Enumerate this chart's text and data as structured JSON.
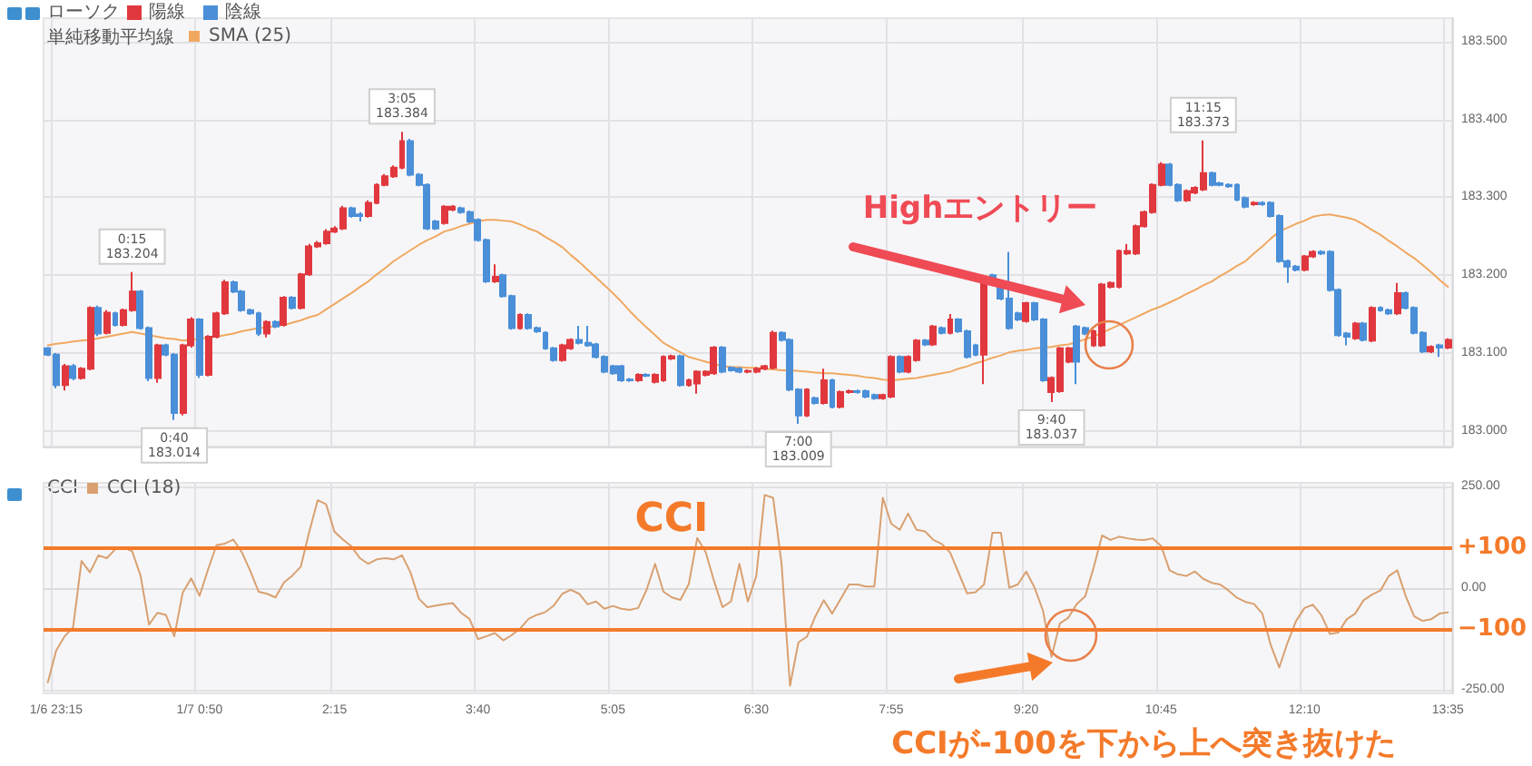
{
  "chart_data": [
    {
      "type": "candlestick",
      "legend_title": "ローソク",
      "legend": "top left",
      "grid": true,
      "tick_labels": "y",
      "categories": [
        null,
        null,
        null,
        null,
        null,
        null,
        null,
        null,
        null,
        null,
        null,
        null,
        null,
        null,
        null,
        null,
        null,
        null,
        null,
        null,
        null,
        null,
        null,
        null,
        null,
        null,
        null,
        null,
        null,
        null,
        null,
        null,
        null,
        null,
        null,
        null,
        null,
        null,
        null,
        null,
        null,
        null,
        null,
        null,
        null,
        null,
        null,
        null,
        null,
        null,
        null,
        null,
        null,
        null,
        null,
        null,
        null,
        null,
        null,
        null,
        null,
        null,
        null,
        null,
        null,
        null,
        null,
        null,
        null,
        null,
        null,
        null,
        null,
        null,
        null,
        null,
        null,
        null,
        null,
        null,
        null,
        null,
        null,
        null,
        null,
        null,
        null,
        null,
        null,
        null,
        null,
        null,
        null,
        null,
        null,
        null,
        null,
        null,
        null,
        null,
        null,
        null,
        null,
        null,
        null,
        null,
        null,
        null,
        null,
        null,
        null,
        null,
        null,
        null,
        null,
        null,
        null,
        null,
        null,
        null,
        null,
        null,
        null,
        null,
        null,
        null,
        null,
        null,
        null,
        null,
        null,
        null,
        null,
        null,
        null,
        null,
        null,
        null,
        null,
        null,
        null,
        null,
        null,
        null,
        null,
        null,
        null,
        null,
        null,
        null,
        null,
        null,
        null,
        null,
        null,
        null,
        null,
        null,
        null,
        null,
        null,
        null,
        null,
        null,
        null,
        null,
        null
      ],
      "ylim": [
        182.98,
        183.53
      ],
      "yticks": [
        {
          "value": 183.0,
          "label": "183.000"
        },
        {
          "value": 183.1,
          "label": "183.100"
        },
        {
          "value": 183.2,
          "label": "183.200"
        },
        {
          "value": 183.3,
          "label": "183.300"
        },
        {
          "value": 183.4,
          "label": "183.400"
        },
        {
          "value": 183.5,
          "label": "183.500"
        }
      ],
      "series": [
        {
          "name": "陽線",
          "color": "#e0383e",
          "ohlc": [
            null,
            null,
            [
              183.059,
              183.086,
              183.052,
              183.083
            ],
            null,
            [
              183.068,
              183.082,
              183.066,
              183.08
            ],
            [
              183.08,
              183.16,
              183.078,
              183.158
            ],
            null,
            [
              183.126,
              183.155,
              183.124,
              183.152
            ],
            null,
            [
              183.136,
              183.157,
              183.134,
              183.155
            ],
            [
              183.155,
              183.204,
              183.153,
              183.179
            ],
            null,
            null,
            [
              183.068,
              183.112,
              183.062,
              183.11
            ],
            null,
            null,
            [
              183.023,
              183.112,
              183.02,
              183.11
            ],
            [
              183.11,
              183.146,
              183.107,
              183.143
            ],
            null,
            [
              183.072,
              183.123,
              183.07,
              183.121
            ],
            [
              183.121,
              183.153,
              183.119,
              183.151
            ],
            [
              183.151,
              183.194,
              183.149,
              183.191
            ],
            null,
            null,
            null,
            null,
            [
              183.125,
              183.142,
              183.12,
              183.14
            ],
            null,
            [
              183.136,
              183.173,
              183.134,
              183.171
            ],
            null,
            [
              183.158,
              183.203,
              183.156,
              183.201
            ],
            [
              183.201,
              183.24,
              183.199,
              183.237
            ],
            [
              183.237,
              183.244,
              183.235,
              183.241
            ],
            [
              183.241,
              183.259,
              183.239,
              183.256
            ],
            [
              183.256,
              183.263,
              183.254,
              183.26
            ],
            [
              183.26,
              183.289,
              183.258,
              183.286
            ],
            null,
            null,
            [
              183.276,
              183.296,
              183.274,
              183.293
            ],
            [
              183.293,
              183.318,
              183.291,
              183.316
            ],
            [
              183.316,
              183.33,
              183.314,
              183.327
            ],
            [
              183.327,
              183.341,
              183.325,
              183.338
            ],
            [
              183.338,
              183.384,
              183.336,
              183.372
            ],
            null,
            null,
            null,
            null,
            [
              183.267,
              183.29,
              183.265,
              183.288
            ],
            [
              183.284,
              183.29,
              183.282,
              183.288
            ],
            null,
            null,
            null,
            null,
            [
              183.192,
              183.214,
              183.19,
              183.198
            ],
            null,
            null,
            [
              183.132,
              183.151,
              183.13,
              183.149
            ],
            null,
            null,
            null,
            null,
            [
              183.091,
              183.112,
              183.089,
              183.11
            ],
            [
              183.106,
              183.119,
              183.104,
              183.117
            ],
            null,
            null,
            null,
            null,
            null,
            null,
            null,
            [
              183.065,
              183.074,
              183.063,
              183.072
            ],
            null,
            [
              183.063,
              183.074,
              183.061,
              183.072
            ],
            [
              183.065,
              183.097,
              183.063,
              183.095
            ],
            [
              183.093,
              183.098,
              183.091,
              183.096
            ],
            null,
            [
              183.059,
              183.067,
              183.057,
              183.065
            ],
            [
              183.061,
              183.078,
              183.048,
              183.076
            ],
            [
              183.072,
              183.078,
              183.07,
              183.076
            ],
            [
              183.074,
              183.109,
              183.072,
              183.107
            ],
            null,
            null,
            null,
            [
              183.076,
              183.079,
              183.074,
              183.077
            ],
            [
              183.076,
              183.082,
              183.074,
              183.08
            ],
            [
              183.08,
              183.085,
              183.078,
              183.083
            ],
            [
              183.081,
              183.129,
              183.079,
              183.126
            ],
            null,
            null,
            null,
            [
              183.02,
              183.055,
              183.018,
              183.053
            ],
            null,
            [
              183.036,
              183.08,
              183.034,
              183.065
            ],
            null,
            [
              183.031,
              183.052,
              183.029,
              183.05
            ],
            [
              183.05,
              183.053,
              183.048,
              183.051
            ],
            null,
            null,
            null,
            [
              183.042,
              183.048,
              183.04,
              183.046
            ],
            [
              183.044,
              183.097,
              183.042,
              183.095
            ],
            null,
            [
              183.076,
              183.097,
              183.074,
              183.095
            ],
            [
              183.091,
              183.118,
              183.089,
              183.116
            ],
            null,
            [
              183.111,
              183.136,
              183.109,
              183.134
            ],
            null,
            [
              183.126,
              183.15,
              183.124,
              183.143
            ],
            null,
            null,
            null,
            [
              183.098,
              183.194,
              183.06,
              183.192
            ],
            null,
            null,
            null,
            null,
            [
              183.141,
              183.166,
              183.139,
              183.164
            ],
            null,
            null,
            [
              183.05,
              183.07,
              183.037,
              183.068
            ],
            [
              183.051,
              183.108,
              183.049,
              183.106
            ],
            [
              183.089,
              183.108,
              183.087,
              183.106
            ],
            null,
            null,
            [
              183.11,
              183.13,
              183.108,
              183.128
            ],
            [
              183.11,
              183.19,
              183.108,
              183.188
            ],
            [
              183.185,
              183.192,
              183.183,
              183.19
            ],
            [
              183.185,
              183.233,
              183.183,
              183.231
            ],
            [
              183.228,
              183.24,
              183.226,
              183.231
            ],
            [
              183.228,
              183.265,
              183.226,
              183.263
            ],
            [
              183.263,
              183.283,
              183.261,
              183.281
            ],
            [
              183.281,
              183.318,
              183.279,
              183.316
            ],
            [
              183.316,
              183.345,
              183.314,
              183.342
            ],
            null,
            null,
            [
              183.296,
              183.31,
              183.294,
              183.308
            ],
            [
              183.306,
              183.314,
              183.304,
              183.312
            ],
            [
              183.31,
              183.373,
              183.308,
              183.331
            ],
            null,
            null,
            null,
            null,
            null,
            [
              183.291,
              183.295,
              183.289,
              183.293
            ],
            null,
            null,
            null,
            null,
            null,
            [
              183.207,
              183.226,
              183.205,
              183.224
            ],
            [
              183.224,
              183.232,
              183.222,
              183.23
            ],
            null,
            null,
            null,
            null,
            [
              183.119,
              183.14,
              183.117,
              183.138
            ],
            null,
            [
              183.116,
              183.16,
              183.114,
              183.158
            ],
            null,
            null,
            [
              183.151,
              183.19,
              183.149,
              183.177
            ],
            null,
            null,
            null,
            [
              183.102,
              183.11,
              183.1,
              183.108
            ],
            null,
            [
              183.107,
              183.119,
              183.105,
              183.117
            ]
          ]
        },
        {
          "name": "陰線",
          "color": "#4a8fd8",
          "ohlc": [
            [
              183.106,
              183.108,
              183.096,
              183.098
            ],
            [
              183.098,
              183.1,
              183.055,
              183.059
            ],
            null,
            [
              183.083,
              183.086,
              183.065,
              183.068
            ],
            null,
            null,
            [
              183.158,
              183.161,
              183.122,
              183.125
            ],
            null,
            [
              183.151,
              183.153,
              183.134,
              183.136
            ],
            null,
            null,
            [
              183.179,
              183.181,
              183.13,
              183.132
            ],
            [
              183.132,
              183.134,
              183.064,
              183.068
            ],
            null,
            [
              183.11,
              183.112,
              183.096,
              183.098
            ],
            [
              183.098,
              183.1,
              183.014,
              183.023
            ],
            null,
            null,
            [
              183.143,
              183.145,
              183.068,
              183.072
            ],
            null,
            null,
            null,
            [
              183.191,
              183.193,
              183.177,
              183.179
            ],
            [
              183.179,
              183.181,
              183.153,
              183.155
            ],
            [
              183.155,
              183.157,
              183.149,
              183.151
            ],
            [
              183.151,
              183.153,
              183.122,
              183.125
            ],
            null,
            [
              183.14,
              183.142,
              183.132,
              183.134
            ],
            null,
            [
              183.171,
              183.173,
              183.156,
              183.158
            ],
            null,
            null,
            null,
            null,
            null,
            null,
            [
              183.286,
              183.288,
              183.274,
              183.276
            ],
            [
              183.278,
              183.281,
              183.269,
              183.276
            ],
            null,
            null,
            null,
            null,
            null,
            [
              183.372,
              183.375,
              183.327,
              183.329
            ],
            [
              183.329,
              183.331,
              183.314,
              183.316
            ],
            [
              183.316,
              183.318,
              183.258,
              183.26
            ],
            [
              183.269,
              183.271,
              183.258,
              183.26
            ],
            null,
            null,
            [
              183.286,
              183.288,
              183.279,
              183.281
            ],
            [
              183.281,
              183.283,
              183.267,
              183.269
            ],
            [
              183.271,
              183.273,
              183.243,
              183.245
            ],
            [
              183.245,
              183.247,
              183.19,
              183.192
            ],
            null,
            [
              183.2,
              183.202,
              183.171,
              183.173
            ],
            [
              183.173,
              183.175,
              183.13,
              183.132
            ],
            null,
            [
              183.149,
              183.151,
              183.13,
              183.132
            ],
            [
              183.132,
              183.134,
              183.126,
              183.128
            ],
            [
              183.126,
              183.128,
              183.104,
              183.106
            ],
            [
              183.106,
              183.108,
              183.089,
              183.091
            ],
            null,
            null,
            [
              183.117,
              183.135,
              183.111,
              183.113
            ],
            [
              183.113,
              183.135,
              183.108,
              183.11
            ],
            [
              183.111,
              183.113,
              183.093,
              183.095
            ],
            [
              183.095,
              183.097,
              183.074,
              183.076
            ],
            [
              183.083,
              183.085,
              183.072,
              183.074
            ],
            [
              183.083,
              183.085,
              183.063,
              183.065
            ],
            [
              183.066,
              183.068,
              183.063,
              183.065
            ],
            null,
            [
              183.072,
              183.074,
              183.069,
              183.071
            ],
            null,
            null,
            null,
            [
              183.096,
              183.098,
              183.057,
              183.059
            ],
            null,
            null,
            null,
            null,
            [
              183.107,
              183.109,
              183.074,
              183.076
            ],
            [
              183.081,
              183.083,
              183.076,
              183.078
            ],
            [
              183.08,
              183.082,
              183.074,
              183.076
            ],
            null,
            null,
            null,
            null,
            [
              183.126,
              183.128,
              183.115,
              183.117
            ],
            [
              183.117,
              183.119,
              183.051,
              183.053
            ],
            [
              183.053,
              183.055,
              183.009,
              183.02
            ],
            null,
            [
              183.042,
              183.044,
              183.034,
              183.036
            ],
            null,
            [
              183.065,
              183.067,
              183.029,
              183.031
            ],
            null,
            null,
            [
              183.051,
              183.053,
              183.048,
              183.05
            ],
            [
              183.051,
              183.053,
              183.042,
              183.044
            ],
            [
              183.046,
              183.048,
              183.04,
              183.042
            ],
            null,
            null,
            [
              183.095,
              183.097,
              183.074,
              183.076
            ],
            null,
            null,
            [
              183.116,
              183.118,
              183.109,
              183.111
            ],
            null,
            [
              183.132,
              183.134,
              183.124,
              183.126
            ],
            null,
            [
              183.143,
              183.145,
              183.126,
              183.128
            ],
            [
              183.128,
              183.13,
              183.093,
              183.095
            ],
            [
              183.11,
              183.112,
              183.096,
              183.098
            ],
            null,
            [
              183.2,
              183.202,
              183.189,
              183.191
            ],
            [
              183.191,
              183.193,
              183.168,
              183.17
            ],
            [
              183.17,
              183.23,
              183.13,
              183.132
            ],
            [
              183.151,
              183.153,
              183.141,
              183.143
            ],
            null,
            [
              183.164,
              183.166,
              183.141,
              183.143
            ],
            [
              183.143,
              183.145,
              183.063,
              183.065
            ],
            null,
            null,
            null,
            [
              183.134,
              183.136,
              183.06,
              183.089
            ],
            [
              183.132,
              183.134,
              183.123,
              183.125
            ],
            null,
            null,
            null,
            null,
            null,
            null,
            null,
            null,
            null,
            [
              183.342,
              183.344,
              183.314,
              183.316
            ],
            [
              183.316,
              183.318,
              183.294,
              183.296
            ],
            null,
            null,
            null,
            [
              183.331,
              183.333,
              183.314,
              183.316
            ],
            [
              183.318,
              183.32,
              183.314,
              183.316
            ],
            [
              183.316,
              183.318,
              183.312,
              183.314
            ],
            [
              183.316,
              183.318,
              183.295,
              183.297
            ],
            [
              183.299,
              183.301,
              183.286,
              183.288
            ],
            null,
            [
              183.293,
              183.295,
              183.289,
              183.291
            ],
            [
              183.293,
              183.295,
              183.274,
              183.276
            ],
            [
              183.276,
              183.278,
              183.216,
              183.218
            ],
            [
              183.218,
              183.22,
              183.19,
              183.211
            ],
            [
              183.211,
              183.213,
              183.205,
              183.207
            ],
            null,
            null,
            [
              183.23,
              183.232,
              183.226,
              183.228
            ],
            [
              183.23,
              183.232,
              183.179,
              183.181
            ],
            [
              183.181,
              183.183,
              183.121,
              183.123
            ],
            [
              183.125,
              183.127,
              183.11,
              183.121
            ],
            null,
            [
              183.138,
              183.14,
              183.115,
              183.117
            ],
            null,
            [
              183.158,
              183.16,
              183.153,
              183.155
            ],
            [
              183.155,
              183.157,
              183.149,
              183.151
            ],
            null,
            [
              183.177,
              183.179,
              183.156,
              183.158
            ],
            [
              183.158,
              183.16,
              183.124,
              183.126
            ],
            [
              183.126,
              183.128,
              183.1,
              183.102
            ],
            null,
            [
              183.11,
              183.112,
              183.095,
              183.107
            ],
            null
          ]
        },
        {
          "type": "line",
          "name": "SMA (25)",
          "color": "#f0a860",
          "values": [
            183.11,
            183.112,
            183.113,
            183.115,
            183.116,
            183.117,
            183.119,
            183.121,
            183.123,
            183.125,
            183.127,
            183.125,
            183.123,
            183.121,
            183.119,
            183.118,
            183.116,
            183.117,
            183.118,
            183.12,
            183.121,
            183.123,
            183.125,
            183.128,
            183.13,
            183.132,
            183.133,
            183.135,
            183.136,
            183.139,
            183.142,
            183.146,
            183.149,
            183.156,
            183.163,
            183.17,
            183.177,
            183.185,
            183.192,
            183.201,
            183.209,
            183.218,
            183.225,
            183.232,
            183.239,
            183.245,
            183.25,
            183.256,
            183.259,
            183.263,
            183.266,
            183.269,
            183.271,
            183.271,
            183.27,
            183.269,
            183.265,
            183.26,
            183.256,
            183.249,
            183.243,
            183.236,
            183.226,
            183.217,
            183.207,
            183.197,
            183.187,
            183.177,
            183.166,
            183.154,
            183.143,
            183.133,
            183.123,
            183.113,
            183.107,
            183.101,
            183.095,
            183.092,
            183.089,
            183.086,
            183.083,
            183.082,
            183.082,
            183.081,
            183.081,
            183.08,
            183.079,
            183.078,
            183.078,
            183.077,
            183.076,
            183.075,
            183.074,
            183.074,
            183.073,
            183.072,
            183.071,
            183.069,
            183.068,
            183.066,
            183.065,
            183.066,
            183.067,
            183.068,
            183.07,
            183.072,
            183.074,
            183.076,
            183.08,
            183.083,
            183.087,
            183.09,
            183.094,
            183.097,
            183.101,
            183.103,
            183.104,
            183.106,
            183.107,
            183.108,
            183.11,
            183.111,
            183.114,
            183.118,
            183.121,
            183.126,
            183.131,
            183.136,
            183.141,
            183.146,
            183.151,
            183.156,
            183.16,
            183.165,
            183.17,
            183.176,
            183.181,
            183.187,
            183.192,
            183.199,
            183.205,
            183.212,
            183.218,
            183.228,
            183.237,
            183.247,
            183.256,
            183.261,
            183.266,
            183.27,
            183.275,
            183.277,
            183.278,
            183.276,
            183.274,
            183.271,
            183.265,
            183.258,
            183.252,
            183.244,
            183.237,
            183.229,
            183.222,
            183.213,
            183.204,
            183.194,
            183.185
          ]
        }
      ],
      "annotations": [
        {
          "text": "0:15\n183.204",
          "y": 183.204
        },
        {
          "text": "0:40\n183.014",
          "y": 183.014
        },
        {
          "text": "3:05\n183.384",
          "y": 183.384
        },
        {
          "text": "7:00\n183.009",
          "y": 183.009
        },
        {
          "text": "9:40\n183.037",
          "y": 183.037
        },
        {
          "text": "11:15\n183.373",
          "y": 183.373
        },
        "単純移動平均線",
        "Highエントリー"
      ]
    },
    {
      "type": "line",
      "legend_title": "CCI",
      "legend": "top left",
      "grid": true,
      "categories": [
        null,
        "1/6 23:15",
        null,
        null,
        null,
        null,
        null,
        null,
        null,
        null,
        null,
        null,
        null,
        null,
        null,
        null,
        null,
        null,
        "1/7 0:50",
        null,
        null,
        null,
        null,
        null,
        null,
        null,
        null,
        null,
        null,
        null,
        null,
        null,
        null,
        null,
        "2:15",
        null,
        null,
        null,
        null,
        null,
        null,
        null,
        null,
        null,
        null,
        null,
        null,
        null,
        null,
        null,
        null,
        "3:40",
        null,
        null,
        null,
        null,
        null,
        null,
        null,
        null,
        null,
        null,
        null,
        null,
        null,
        null,
        null,
        "5:05",
        null,
        null,
        null,
        null,
        null,
        null,
        null,
        null,
        null,
        null,
        null,
        null,
        null,
        null,
        null,
        null,
        "6:30",
        null,
        null,
        null,
        null,
        null,
        null,
        null,
        null,
        null,
        null,
        null,
        null,
        null,
        null,
        null,
        "7:55",
        null,
        null,
        null,
        null,
        null,
        null,
        null,
        null,
        null,
        null,
        null,
        null,
        null,
        null,
        null,
        "9:20",
        null,
        null,
        null,
        null,
        null,
        null,
        null,
        null,
        null,
        null,
        null,
        null,
        null,
        null,
        null,
        "10:45",
        null,
        null,
        null,
        null,
        null,
        null,
        null,
        null,
        null,
        null,
        null,
        null,
        null,
        null,
        null,
        null,
        "12:10",
        null,
        null,
        null,
        null,
        null,
        null,
        null,
        null,
        null,
        null,
        null,
        null,
        null,
        null,
        null,
        null,
        "13:35"
      ],
      "ylim": [
        -260,
        260
      ],
      "yticks": [
        {
          "value": -250,
          "label": "-250.00"
        },
        {
          "value": 0,
          "label": "0.00"
        },
        {
          "value": 250,
          "label": "250.00"
        }
      ],
      "series": [
        {
          "name": "CCI (18)",
          "color": "#d9a070",
          "values": [
            -233,
            -154,
            -119,
            -97,
            67,
            39,
            81,
            74,
            96,
            100,
            91,
            31,
            -90,
            -61,
            -66,
            -119,
            -11,
            24,
            -19,
            46,
            106,
            110,
            120,
            89,
            43,
            -9,
            -14,
            -23,
            14,
            31,
            53,
            139,
            217,
            207,
            139,
            120,
            103,
            74,
            60,
            71,
            74,
            71,
            81,
            39,
            -26,
            -47,
            -43,
            -40,
            -37,
            -61,
            -76,
            -126,
            -119,
            -111,
            -129,
            -116,
            -100,
            -76,
            -66,
            -59,
            -43,
            -14,
            -4,
            -14,
            -40,
            -33,
            -51,
            -44,
            -51,
            -54,
            -49,
            -4,
            60,
            -9,
            -23,
            -29,
            10,
            124,
            89,
            17,
            -47,
            -33,
            60,
            -33,
            30,
            230,
            223,
            59,
            -241,
            -134,
            -120,
            -70,
            -30,
            -63,
            -27,
            9,
            9,
            4,
            4,
            223,
            159,
            144,
            184,
            144,
            140,
            119,
            109,
            87,
            37,
            -13,
            -10,
            9,
            137,
            137,
            1,
            9,
            41,
            1,
            -56,
            -170,
            -87,
            -73,
            -39,
            -20,
            51,
            130,
            119,
            127,
            123,
            120,
            119,
            123,
            104,
            44,
            34,
            30,
            41,
            23,
            13,
            9,
            -6,
            -24,
            -34,
            -39,
            -63,
            -141,
            -196,
            -134,
            -81,
            -49,
            -41,
            -67,
            -113,
            -110,
            -77,
            -63,
            -30,
            -16,
            -6,
            30,
            44,
            -20,
            -70,
            -81,
            -77,
            -63,
            -60
          ]
        }
      ],
      "ref_lines": [
        {
          "axis": "y",
          "value": 100,
          "label": "+100",
          "color": "#f47a2a"
        },
        {
          "axis": "y",
          "value": -100,
          "label": "−100",
          "color": "#f47a2a"
        }
      ],
      "annotations": [
        "CCI",
        "CCIが-100を下から上へ突き抜けた"
      ]
    }
  ]
}
